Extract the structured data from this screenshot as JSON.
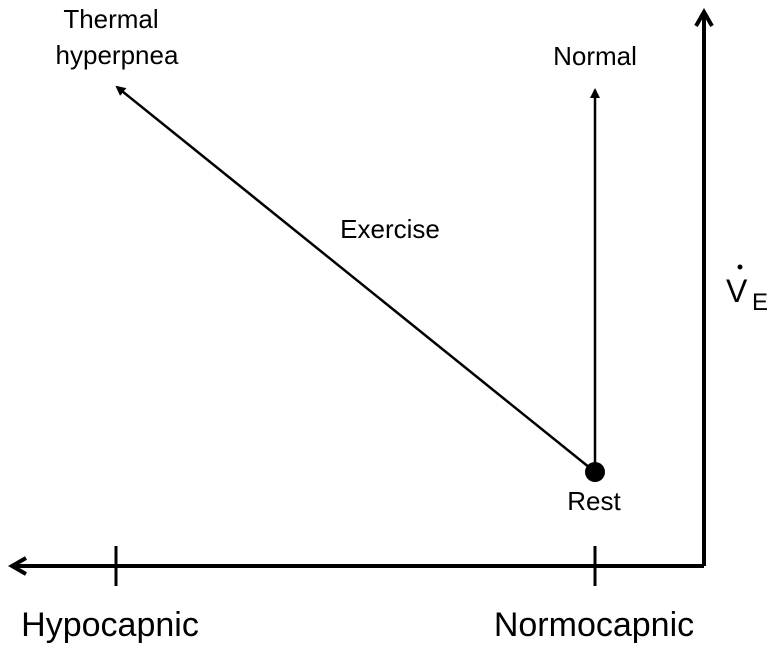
{
  "labels": {
    "thermal_line1": "Thermal",
    "thermal_line2": "hyperpnea",
    "normal": "Normal",
    "exercise": "Exercise",
    "rest": "Rest",
    "ve": "V",
    "ve_sub": "E",
    "hypocapnic": "Hypocapnic",
    "normocapnic": "Normocapnic"
  }
}
